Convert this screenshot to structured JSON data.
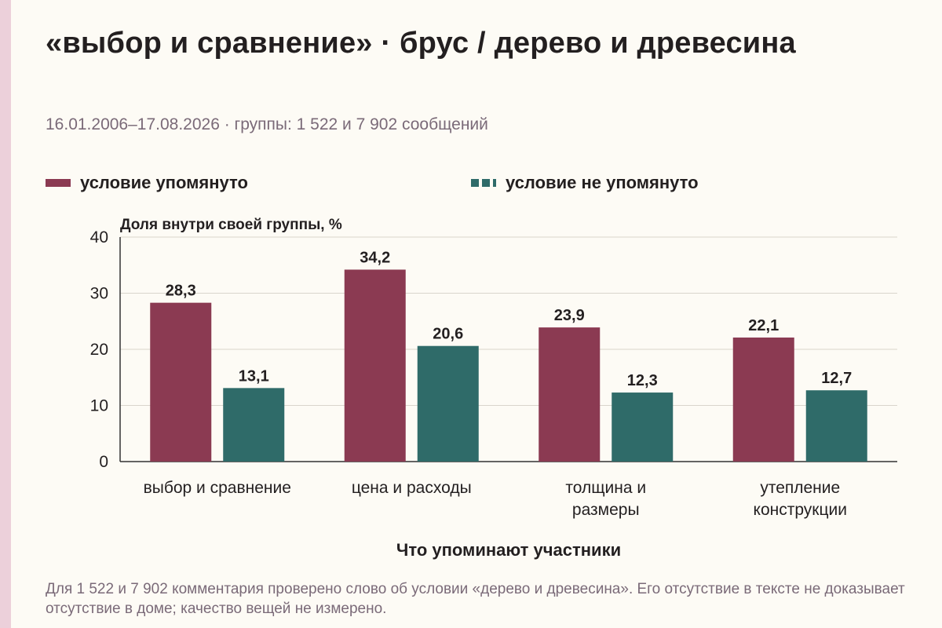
{
  "title": "«выбор и сравнение» · брус / дерево и древесина",
  "subtitle": "16.01.2006–17.08.2026 · группы: 1 522 и 7 902 сообщений",
  "note": "Для 1 522 и 7 902 комментария проверено слово об условии «дерево и древесина». Его отсутствие в тексте не доказывает отсутствие в доме; качество вещей не измерено.",
  "colors": {
    "mentioned": "#8b3a52",
    "not_mentioned": "#2f6b69",
    "grid": "#d9d5cc",
    "axis": "#333333"
  },
  "chart_data": {
    "type": "bar",
    "categories": [
      [
        "выбор и сравнение"
      ],
      [
        "цена и расходы"
      ],
      [
        "толщина и",
        "размеры"
      ],
      [
        "утепление",
        "конструкции"
      ]
    ],
    "series": [
      {
        "name": "условие упомянуто",
        "values": [
          28.3,
          34.2,
          23.9,
          22.1
        ],
        "labels": [
          "28,3",
          "34,2",
          "23,9",
          "22,1"
        ]
      },
      {
        "name": "условие не упомянуто",
        "values": [
          13.1,
          20.6,
          12.3,
          12.7
        ],
        "labels": [
          "13,1",
          "20,6",
          "12,3",
          "12,7"
        ]
      }
    ],
    "ylabel": "Доля внутри своей группы, %",
    "xlabel": "Что упоминают участники",
    "ylim": [
      0,
      40
    ],
    "yticks": [
      0,
      10,
      20,
      30,
      40
    ],
    "grid": true,
    "legend": "top"
  }
}
